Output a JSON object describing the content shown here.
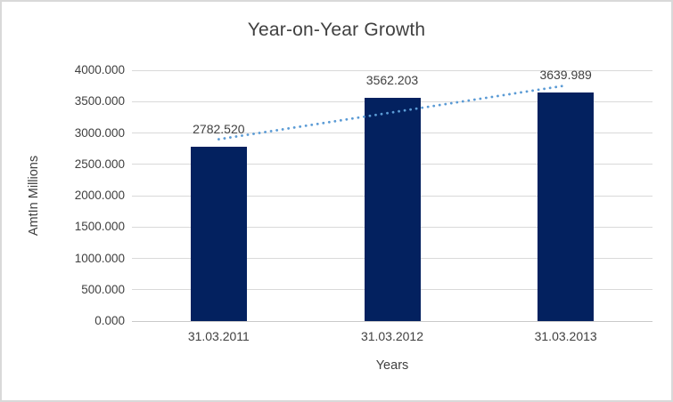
{
  "chart_data": {
    "type": "bar",
    "title": "Year-on-Year Growth",
    "xlabel": "Years",
    "ylabel": "AmtIn Millions",
    "categories": [
      "31.03.2011",
      "31.03.2012",
      "31.03.2013"
    ],
    "values": [
      2782.52,
      3562.203,
      3639.989
    ],
    "data_labels": [
      "2782.520",
      "3562.203",
      "3639.989"
    ],
    "ylim": [
      0,
      4000
    ],
    "y_tick_step": 500,
    "y_tick_labels": [
      "0.000",
      "500.000",
      "1000.000",
      "1500.000",
      "2000.000",
      "2500.000",
      "3000.000",
      "3500.000",
      "4000.000"
    ],
    "grid": true,
    "legend": "none",
    "trendline": {
      "type": "linear",
      "style": "dotted"
    },
    "colors": {
      "bar": "#03215f",
      "trendline": "#5b9bd5",
      "gridline": "#d9d9d9",
      "axis-line": "#c9c9c9",
      "text": "#404040",
      "border": "#d9d9d9",
      "background": "#ffffff"
    }
  }
}
